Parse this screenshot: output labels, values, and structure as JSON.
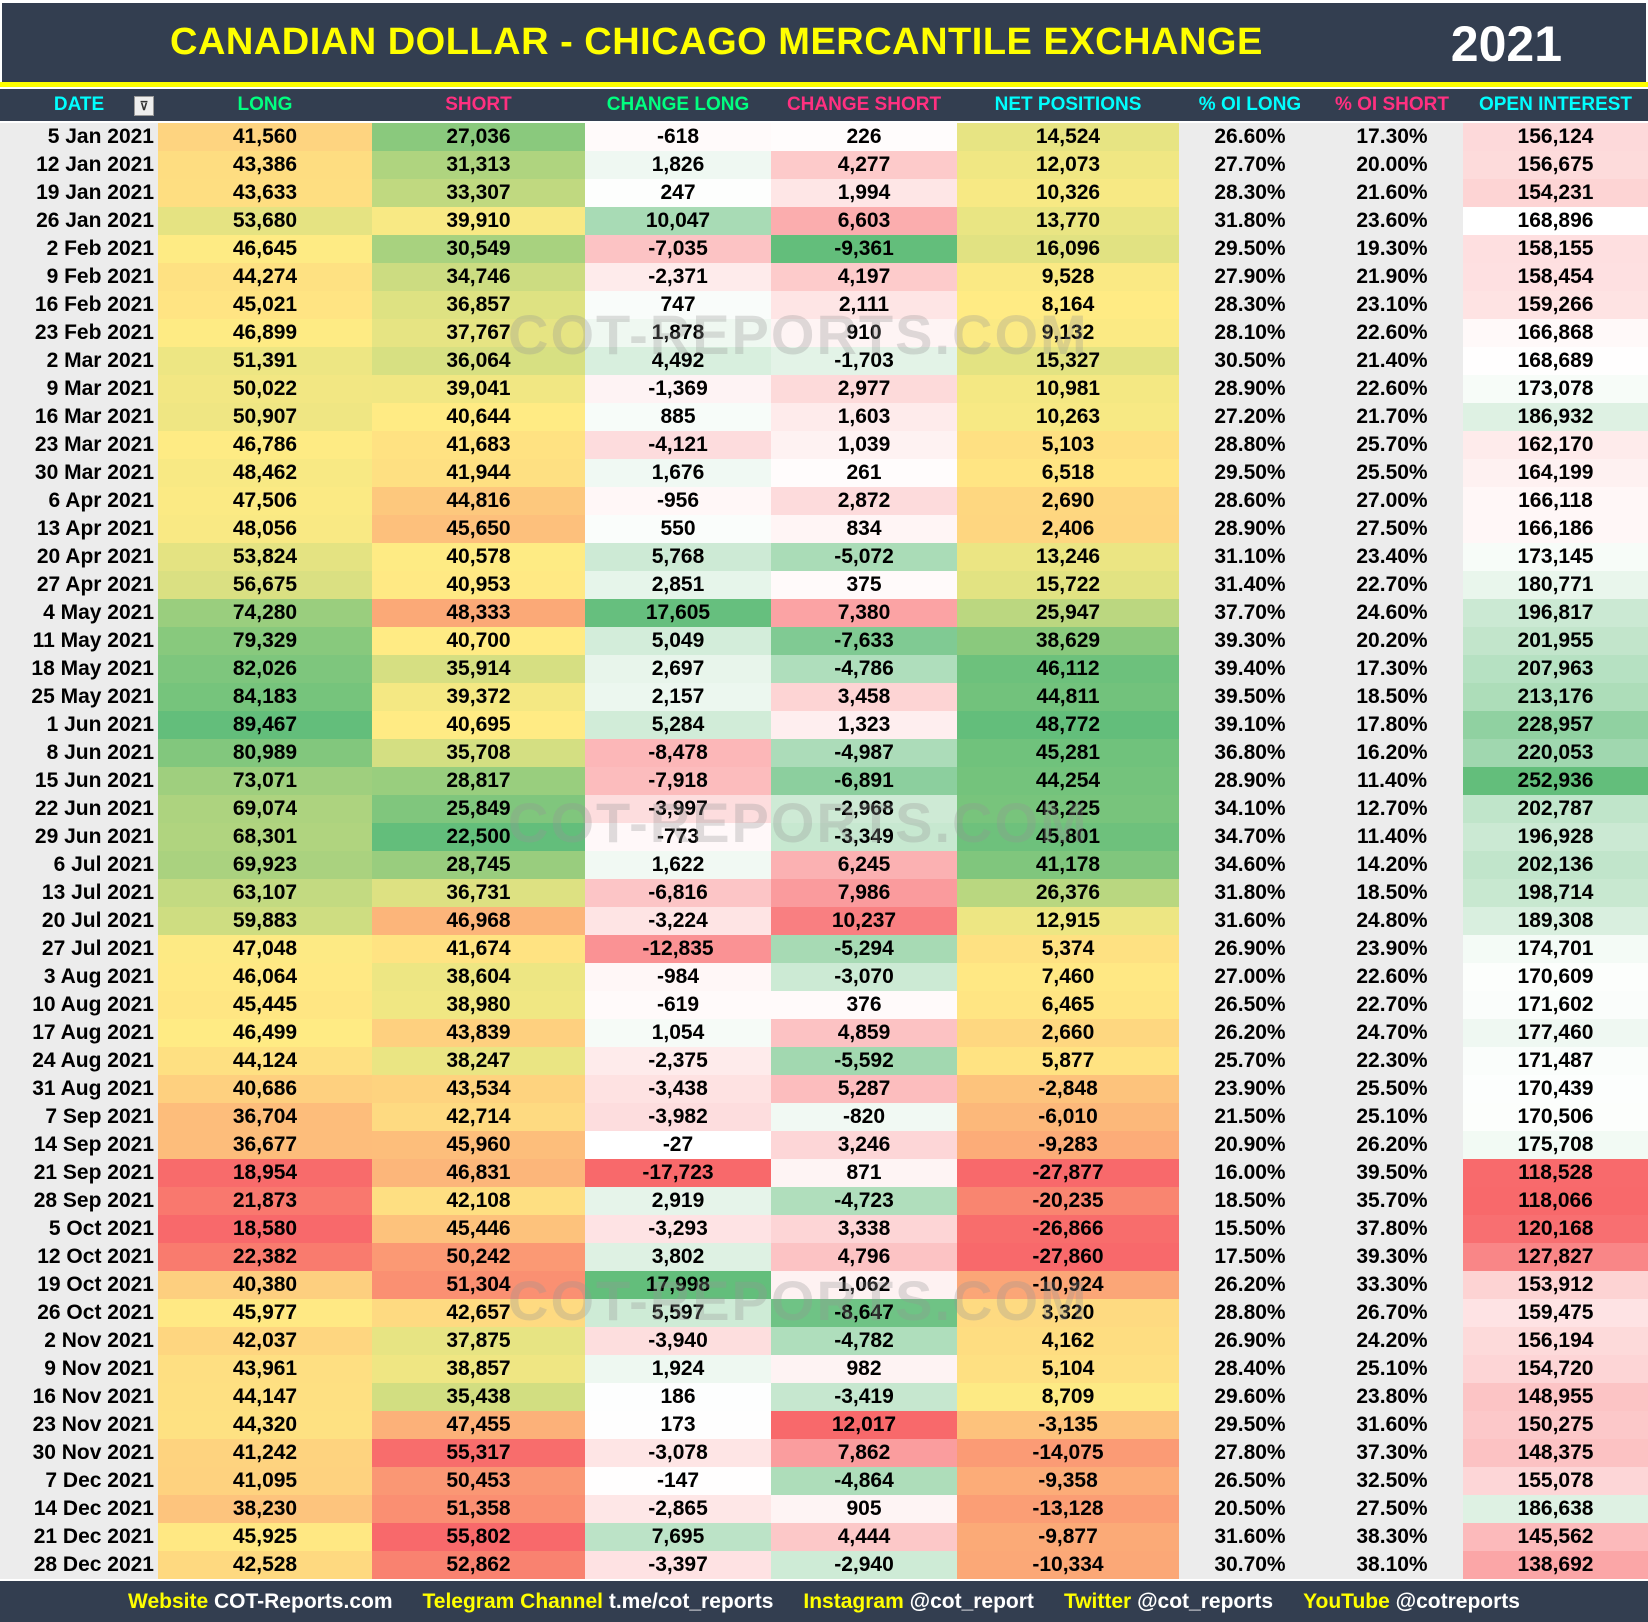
{
  "title": "CANADIAN DOLLAR - CHICAGO MERCANTILE EXCHANGE",
  "year": "2021",
  "watermark": "COT-REPORTS.COM",
  "footer": [
    {
      "label": "Website",
      "value": "COT-Reports.com"
    },
    {
      "label": "Telegram Channel",
      "value": "t.me/cot_reports"
    },
    {
      "label": "Instagram",
      "value": "@cot_report"
    },
    {
      "label": "Twitter",
      "value": "@cot_reports"
    },
    {
      "label": "YouTube",
      "value": "@cotreports"
    }
  ],
  "chart_data": {
    "type": "table",
    "title": "CANADIAN DOLLAR - CHICAGO MERCANTILE EXCHANGE",
    "columns": [
      {
        "label": "DATE",
        "color": "#00ffff"
      },
      {
        "label": "LONG",
        "color": "#00ff80"
      },
      {
        "label": "SHORT",
        "color": "#ff3080"
      },
      {
        "label": "CHANGE LONG",
        "color": "#00ff80"
      },
      {
        "label": "CHANGE SHORT",
        "color": "#ff3080"
      },
      {
        "label": "NET POSITIONS",
        "color": "#00ffff"
      },
      {
        "label": "% OI LONG",
        "color": "#00ffff"
      },
      {
        "label": "% OI SHORT",
        "color": "#ff3080"
      },
      {
        "label": "OPEN INTEREST",
        "color": "#00ffff"
      }
    ],
    "rows": [
      [
        "5 Jan 2021",
        "41,560",
        "27,036",
        "-618",
        "226",
        "14,524",
        "26.60%",
        "17.30%",
        "156,124"
      ],
      [
        "12 Jan 2021",
        "43,386",
        "31,313",
        "1,826",
        "4,277",
        "12,073",
        "27.70%",
        "20.00%",
        "156,675"
      ],
      [
        "19 Jan 2021",
        "43,633",
        "33,307",
        "247",
        "1,994",
        "10,326",
        "28.30%",
        "21.60%",
        "154,231"
      ],
      [
        "26 Jan 2021",
        "53,680",
        "39,910",
        "10,047",
        "6,603",
        "13,770",
        "31.80%",
        "23.60%",
        "168,896"
      ],
      [
        "2 Feb 2021",
        "46,645",
        "30,549",
        "-7,035",
        "-9,361",
        "16,096",
        "29.50%",
        "19.30%",
        "158,155"
      ],
      [
        "9 Feb 2021",
        "44,274",
        "34,746",
        "-2,371",
        "4,197",
        "9,528",
        "27.90%",
        "21.90%",
        "158,454"
      ],
      [
        "16 Feb 2021",
        "45,021",
        "36,857",
        "747",
        "2,111",
        "8,164",
        "28.30%",
        "23.10%",
        "159,266"
      ],
      [
        "23 Feb 2021",
        "46,899",
        "37,767",
        "1,878",
        "910",
        "9,132",
        "28.10%",
        "22.60%",
        "166,868"
      ],
      [
        "2 Mar 2021",
        "51,391",
        "36,064",
        "4,492",
        "-1,703",
        "15,327",
        "30.50%",
        "21.40%",
        "168,689"
      ],
      [
        "9 Mar 2021",
        "50,022",
        "39,041",
        "-1,369",
        "2,977",
        "10,981",
        "28.90%",
        "22.60%",
        "173,078"
      ],
      [
        "16 Mar 2021",
        "50,907",
        "40,644",
        "885",
        "1,603",
        "10,263",
        "27.20%",
        "21.70%",
        "186,932"
      ],
      [
        "23 Mar 2021",
        "46,786",
        "41,683",
        "-4,121",
        "1,039",
        "5,103",
        "28.80%",
        "25.70%",
        "162,170"
      ],
      [
        "30 Mar 2021",
        "48,462",
        "41,944",
        "1,676",
        "261",
        "6,518",
        "29.50%",
        "25.50%",
        "164,199"
      ],
      [
        "6 Apr 2021",
        "47,506",
        "44,816",
        "-956",
        "2,872",
        "2,690",
        "28.60%",
        "27.00%",
        "166,118"
      ],
      [
        "13 Apr 2021",
        "48,056",
        "45,650",
        "550",
        "834",
        "2,406",
        "28.90%",
        "27.50%",
        "166,186"
      ],
      [
        "20 Apr 2021",
        "53,824",
        "40,578",
        "5,768",
        "-5,072",
        "13,246",
        "31.10%",
        "23.40%",
        "173,145"
      ],
      [
        "27 Apr 2021",
        "56,675",
        "40,953",
        "2,851",
        "375",
        "15,722",
        "31.40%",
        "22.70%",
        "180,771"
      ],
      [
        "4 May 2021",
        "74,280",
        "48,333",
        "17,605",
        "7,380",
        "25,947",
        "37.70%",
        "24.60%",
        "196,817"
      ],
      [
        "11 May 2021",
        "79,329",
        "40,700",
        "5,049",
        "-7,633",
        "38,629",
        "39.30%",
        "20.20%",
        "201,955"
      ],
      [
        "18 May 2021",
        "82,026",
        "35,914",
        "2,697",
        "-4,786",
        "46,112",
        "39.40%",
        "17.30%",
        "207,963"
      ],
      [
        "25 May 2021",
        "84,183",
        "39,372",
        "2,157",
        "3,458",
        "44,811",
        "39.50%",
        "18.50%",
        "213,176"
      ],
      [
        "1 Jun 2021",
        "89,467",
        "40,695",
        "5,284",
        "1,323",
        "48,772",
        "39.10%",
        "17.80%",
        "228,957"
      ],
      [
        "8 Jun 2021",
        "80,989",
        "35,708",
        "-8,478",
        "-4,987",
        "45,281",
        "36.80%",
        "16.20%",
        "220,053"
      ],
      [
        "15 Jun 2021",
        "73,071",
        "28,817",
        "-7,918",
        "-6,891",
        "44,254",
        "28.90%",
        "11.40%",
        "252,936"
      ],
      [
        "22 Jun 2021",
        "69,074",
        "25,849",
        "-3,997",
        "-2,968",
        "43,225",
        "34.10%",
        "12.70%",
        "202,787"
      ],
      [
        "29 Jun 2021",
        "68,301",
        "22,500",
        "-773",
        "-3,349",
        "45,801",
        "34.70%",
        "11.40%",
        "196,928"
      ],
      [
        "6 Jul 2021",
        "69,923",
        "28,745",
        "1,622",
        "6,245",
        "41,178",
        "34.60%",
        "14.20%",
        "202,136"
      ],
      [
        "13 Jul 2021",
        "63,107",
        "36,731",
        "-6,816",
        "7,986",
        "26,376",
        "31.80%",
        "18.50%",
        "198,714"
      ],
      [
        "20 Jul 2021",
        "59,883",
        "46,968",
        "-3,224",
        "10,237",
        "12,915",
        "31.60%",
        "24.80%",
        "189,308"
      ],
      [
        "27 Jul 2021",
        "47,048",
        "41,674",
        "-12,835",
        "-5,294",
        "5,374",
        "26.90%",
        "23.90%",
        "174,701"
      ],
      [
        "3 Aug 2021",
        "46,064",
        "38,604",
        "-984",
        "-3,070",
        "7,460",
        "27.00%",
        "22.60%",
        "170,609"
      ],
      [
        "10 Aug 2021",
        "45,445",
        "38,980",
        "-619",
        "376",
        "6,465",
        "26.50%",
        "22.70%",
        "171,602"
      ],
      [
        "17 Aug 2021",
        "46,499",
        "43,839",
        "1,054",
        "4,859",
        "2,660",
        "26.20%",
        "24.70%",
        "177,460"
      ],
      [
        "24 Aug 2021",
        "44,124",
        "38,247",
        "-2,375",
        "-5,592",
        "5,877",
        "25.70%",
        "22.30%",
        "171,487"
      ],
      [
        "31 Aug 2021",
        "40,686",
        "43,534",
        "-3,438",
        "5,287",
        "-2,848",
        "23.90%",
        "25.50%",
        "170,439"
      ],
      [
        "7 Sep 2021",
        "36,704",
        "42,714",
        "-3,982",
        "-820",
        "-6,010",
        "21.50%",
        "25.10%",
        "170,506"
      ],
      [
        "14 Sep 2021",
        "36,677",
        "45,960",
        "-27",
        "3,246",
        "-9,283",
        "20.90%",
        "26.20%",
        "175,708"
      ],
      [
        "21 Sep 2021",
        "18,954",
        "46,831",
        "-17,723",
        "871",
        "-27,877",
        "16.00%",
        "39.50%",
        "118,528"
      ],
      [
        "28 Sep 2021",
        "21,873",
        "42,108",
        "2,919",
        "-4,723",
        "-20,235",
        "18.50%",
        "35.70%",
        "118,066"
      ],
      [
        "5 Oct 2021",
        "18,580",
        "45,446",
        "-3,293",
        "3,338",
        "-26,866",
        "15.50%",
        "37.80%",
        "120,168"
      ],
      [
        "12 Oct 2021",
        "22,382",
        "50,242",
        "3,802",
        "4,796",
        "-27,860",
        "17.50%",
        "39.30%",
        "127,827"
      ],
      [
        "19 Oct 2021",
        "40,380",
        "51,304",
        "17,998",
        "1,062",
        "-10,924",
        "26.20%",
        "33.30%",
        "153,912"
      ],
      [
        "26 Oct 2021",
        "45,977",
        "42,657",
        "5,597",
        "-8,647",
        "3,320",
        "28.80%",
        "26.70%",
        "159,475"
      ],
      [
        "2 Nov 2021",
        "42,037",
        "37,875",
        "-3,940",
        "-4,782",
        "4,162",
        "26.90%",
        "24.20%",
        "156,194"
      ],
      [
        "9 Nov 2021",
        "43,961",
        "38,857",
        "1,924",
        "982",
        "5,104",
        "28.40%",
        "25.10%",
        "154,720"
      ],
      [
        "16 Nov 2021",
        "44,147",
        "35,438",
        "186",
        "-3,419",
        "8,709",
        "29.60%",
        "23.80%",
        "148,955"
      ],
      [
        "23 Nov 2021",
        "44,320",
        "47,455",
        "173",
        "12,017",
        "-3,135",
        "29.50%",
        "31.60%",
        "150,275"
      ],
      [
        "30 Nov 2021",
        "41,242",
        "55,317",
        "-3,078",
        "7,862",
        "-14,075",
        "27.80%",
        "37.30%",
        "148,375"
      ],
      [
        "7 Dec 2021",
        "41,095",
        "50,453",
        "-147",
        "-4,864",
        "-9,358",
        "26.50%",
        "32.50%",
        "155,078"
      ],
      [
        "14 Dec 2021",
        "38,230",
        "51,358",
        "-2,865",
        "905",
        "-13,128",
        "20.50%",
        "27.50%",
        "186,638"
      ],
      [
        "21 Dec 2021",
        "45,925",
        "55,802",
        "7,695",
        "4,444",
        "-9,877",
        "31.60%",
        "38.30%",
        "145,562"
      ],
      [
        "28 Dec 2021",
        "42,528",
        "52,862",
        "-3,397",
        "-2,940",
        "-10,334",
        "30.70%",
        "38.10%",
        "138,692"
      ]
    ],
    "color_scales": {
      "high_good": "green-yellow-red (high=green)",
      "low_good": "green-yellow-red (low=green)",
      "change": "red-white-green",
      "colors": {
        "red": "#f8696b",
        "yellow": "#ffeb84",
        "green": "#63be7b",
        "white": "#ffffff",
        "grey": "#ececec"
      }
    }
  }
}
